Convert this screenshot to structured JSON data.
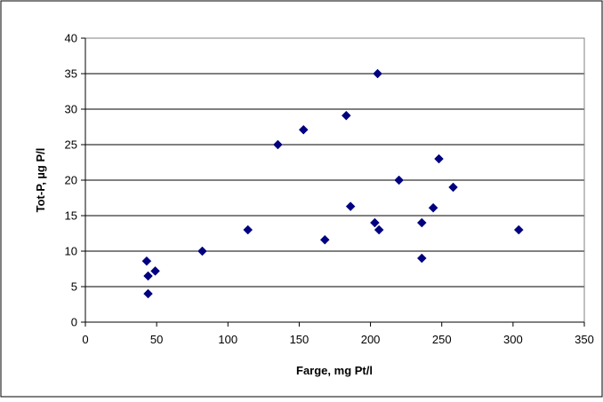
{
  "chart_data": {
    "type": "scatter",
    "title": "",
    "xlabel": "Farge, mg Pt/l",
    "ylabel": "Tot-P, µg P/l",
    "xlim": [
      0,
      350
    ],
    "ylim": [
      0,
      40
    ],
    "x_ticks": [
      "0",
      "50",
      "100",
      "150",
      "200",
      "250",
      "300",
      "350"
    ],
    "y_ticks": [
      "0",
      "5",
      "10",
      "15",
      "20",
      "25",
      "30",
      "35",
      "40"
    ],
    "grid": "horizontal",
    "legend": "none",
    "marker": "diamond",
    "colors": {
      "marker": "#000080",
      "grid": "#000000",
      "border": "#000000"
    },
    "series": [
      {
        "points": [
          [
            43,
            8.6
          ],
          [
            44,
            6.5
          ],
          [
            44,
            4.0
          ],
          [
            49,
            7.2
          ],
          [
            82,
            10.0
          ],
          [
            114,
            13.0
          ],
          [
            135,
            25.0
          ],
          [
            153,
            27.1
          ],
          [
            168,
            11.6
          ],
          [
            183,
            29.1
          ],
          [
            186,
            16.3
          ],
          [
            203,
            14.0
          ],
          [
            205,
            35.0
          ],
          [
            206,
            13.0
          ],
          [
            220,
            20.0
          ],
          [
            236,
            14.0
          ],
          [
            236,
            9.0
          ],
          [
            244,
            16.1
          ],
          [
            248,
            23.0
          ],
          [
            258,
            19.0
          ],
          [
            304,
            13.0
          ]
        ]
      }
    ]
  }
}
